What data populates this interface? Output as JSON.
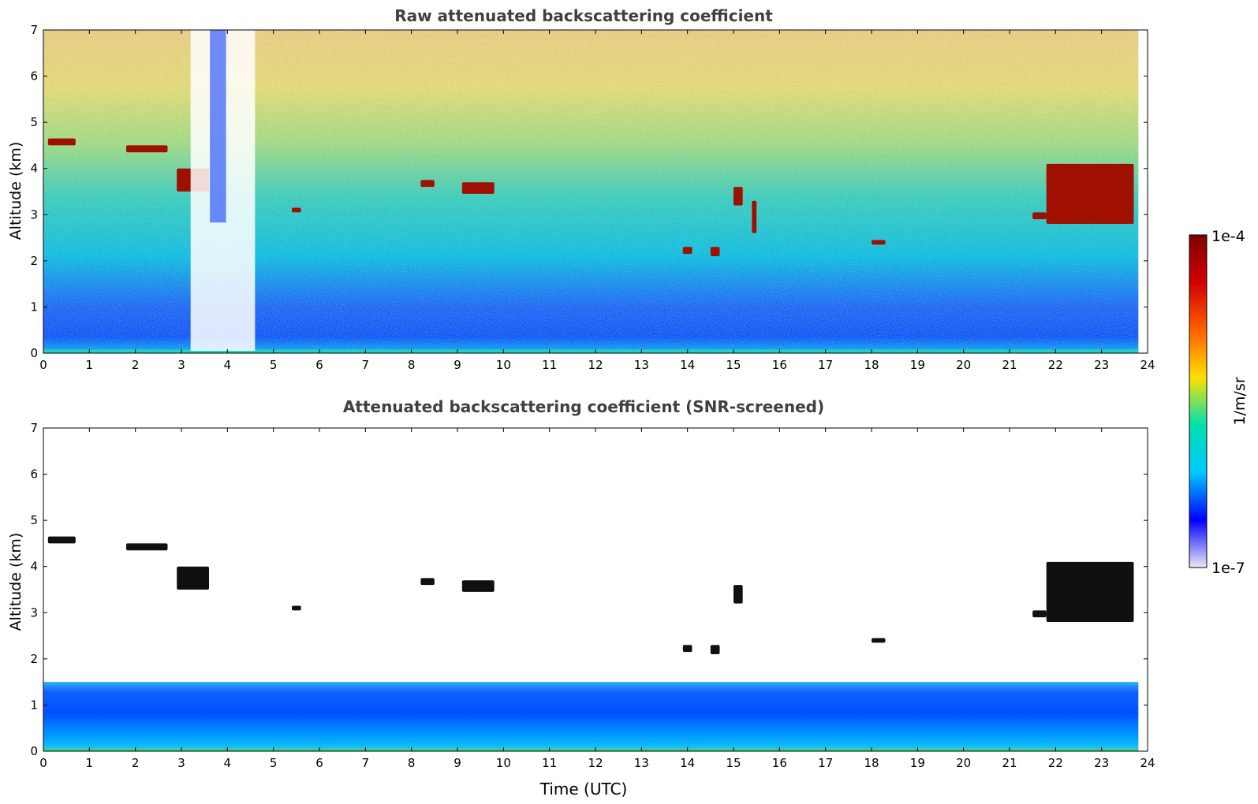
{
  "chart_data": [
    {
      "type": "heatmap",
      "title": "Raw attenuated backscattering coefficient",
      "xlabel": "",
      "ylabel": "Altitude (km)",
      "xlim": [
        0,
        24
      ],
      "ylim": [
        0,
        7
      ],
      "xticks": [
        0,
        1,
        2,
        3,
        4,
        5,
        6,
        7,
        8,
        9,
        10,
        11,
        12,
        13,
        14,
        15,
        16,
        17,
        18,
        19,
        20,
        21,
        22,
        23,
        24
      ],
      "yticks": [
        0,
        1,
        2,
        3,
        4,
        5,
        6,
        7
      ],
      "data_end_time": 23.8,
      "features": [
        {
          "name": "cloud",
          "x": [
            0.1,
            0.7
          ],
          "y": [
            4.5,
            4.65
          ]
        },
        {
          "name": "cloud",
          "x": [
            1.8,
            2.7
          ],
          "y": [
            4.35,
            4.5
          ]
        },
        {
          "name": "cloud",
          "x": [
            2.9,
            3.6
          ],
          "y": [
            3.5,
            4.0
          ]
        },
        {
          "name": "cloud",
          "x": [
            5.4,
            5.6
          ],
          "y": [
            3.05,
            3.15
          ]
        },
        {
          "name": "cloud",
          "x": [
            8.2,
            8.5
          ],
          "y": [
            3.6,
            3.75
          ]
        },
        {
          "name": "cloud",
          "x": [
            9.1,
            9.8
          ],
          "y": [
            3.45,
            3.7
          ]
        },
        {
          "name": "cloud",
          "x": [
            13.9,
            14.1
          ],
          "y": [
            2.15,
            2.3
          ]
        },
        {
          "name": "cloud",
          "x": [
            14.5,
            14.7
          ],
          "y": [
            2.1,
            2.3
          ]
        },
        {
          "name": "cloud",
          "x": [
            15.0,
            15.2
          ],
          "y": [
            3.2,
            3.6
          ]
        },
        {
          "name": "cloud",
          "x": [
            15.4,
            15.5
          ],
          "y": [
            2.6,
            3.3
          ]
        },
        {
          "name": "cloud",
          "x": [
            18.0,
            18.3
          ],
          "y": [
            2.35,
            2.45
          ]
        },
        {
          "name": "cloud",
          "x": [
            21.5,
            21.8
          ],
          "y": [
            2.9,
            3.05
          ]
        },
        {
          "name": "cloud",
          "x": [
            21.8,
            23.7
          ],
          "y": [
            2.8,
            4.1
          ]
        },
        {
          "name": "precipitation",
          "x": [
            3.2,
            4.6
          ],
          "y": [
            0.05,
            7.0
          ]
        }
      ]
    },
    {
      "type": "heatmap",
      "title": "Attenuated backscattering coefficient (SNR-screened)",
      "xlabel": "Time (UTC)",
      "ylabel": "Altitude (km)",
      "xlim": [
        0,
        24
      ],
      "ylim": [
        0,
        7
      ],
      "xticks": [
        0,
        1,
        2,
        3,
        4,
        5,
        6,
        7,
        8,
        9,
        10,
        11,
        12,
        13,
        14,
        15,
        16,
        17,
        18,
        19,
        20,
        21,
        22,
        23,
        24
      ],
      "yticks": [
        0,
        1,
        2,
        3,
        4,
        5,
        6,
        7
      ],
      "data_end_time": 23.8,
      "boundary_layer_top_km": 1.5,
      "features": [
        {
          "name": "cloud",
          "x": [
            0.1,
            0.7
          ],
          "y": [
            4.5,
            4.65
          ]
        },
        {
          "name": "cloud",
          "x": [
            1.8,
            2.7
          ],
          "y": [
            4.35,
            4.5
          ]
        },
        {
          "name": "cloud",
          "x": [
            2.9,
            3.6
          ],
          "y": [
            3.5,
            4.0
          ]
        },
        {
          "name": "cloud",
          "x": [
            5.4,
            5.6
          ],
          "y": [
            3.05,
            3.15
          ]
        },
        {
          "name": "cloud",
          "x": [
            8.2,
            8.5
          ],
          "y": [
            3.6,
            3.75
          ]
        },
        {
          "name": "cloud",
          "x": [
            9.1,
            9.8
          ],
          "y": [
            3.45,
            3.7
          ]
        },
        {
          "name": "cloud",
          "x": [
            13.9,
            14.1
          ],
          "y": [
            2.15,
            2.3
          ]
        },
        {
          "name": "cloud",
          "x": [
            14.5,
            14.7
          ],
          "y": [
            2.1,
            2.3
          ]
        },
        {
          "name": "cloud",
          "x": [
            15.0,
            15.2
          ],
          "y": [
            3.2,
            3.6
          ]
        },
        {
          "name": "cloud",
          "x": [
            18.0,
            18.3
          ],
          "y": [
            2.35,
            2.45
          ]
        },
        {
          "name": "cloud",
          "x": [
            21.5,
            21.8
          ],
          "y": [
            2.9,
            3.05
          ]
        },
        {
          "name": "cloud",
          "x": [
            21.8,
            23.7
          ],
          "y": [
            2.8,
            4.1
          ]
        }
      ]
    }
  ],
  "colorbar": {
    "label": "1/m/sr",
    "min_label": "1e-7",
    "max_label": "1e-4",
    "scale": "log",
    "colors": [
      "#e8e8f8",
      "#0000ff",
      "#00c8ff",
      "#00e0b0",
      "#ffe000",
      "#ff6000",
      "#d00000",
      "#800000"
    ]
  }
}
